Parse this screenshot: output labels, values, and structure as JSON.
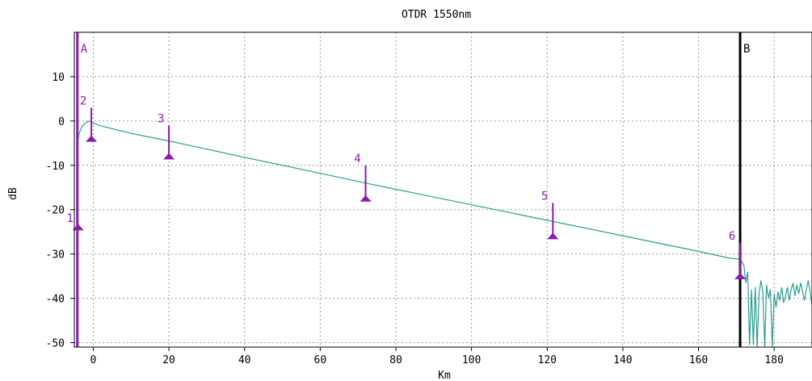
{
  "chart_data": {
    "type": "line",
    "title": "OTDR 1550nm",
    "xlabel": "Km",
    "ylabel": "dB",
    "xlim": [
      -5,
      190
    ],
    "ylim": [
      -51,
      20
    ],
    "grid": true,
    "x_ticks": [
      0,
      20,
      40,
      60,
      80,
      100,
      120,
      140,
      160,
      180
    ],
    "y_ticks": [
      10,
      0,
      -10,
      -20,
      -30,
      -40,
      -50
    ],
    "colors": {
      "trace": "#2a9d8f",
      "marker": "#8a1bb0",
      "cursor_a": "#8a1bb0",
      "cursor_b": "#000000"
    },
    "series": [
      {
        "values": [
          [
            -4.4,
            -6.5
          ],
          [
            -3.8,
            -3.0
          ],
          [
            -3.0,
            -1.2
          ],
          [
            -2.0,
            -0.4
          ],
          [
            -1.0,
            0.0
          ],
          [
            0,
            -0.5
          ],
          [
            2,
            -1.1
          ],
          [
            10,
            -2.8
          ],
          [
            20,
            -4.5
          ],
          [
            40,
            -8.2
          ],
          [
            60,
            -11.8
          ],
          [
            72,
            -14.0
          ],
          [
            80,
            -15.4
          ],
          [
            100,
            -18.9
          ],
          [
            120,
            -22.4
          ],
          [
            140,
            -25.9
          ],
          [
            160,
            -29.4
          ],
          [
            168,
            -30.9
          ],
          [
            171,
            -31.2
          ],
          [
            172,
            -32.5
          ],
          [
            172.5,
            -36.5
          ],
          [
            173,
            -34.0
          ],
          [
            173.5,
            -50.5
          ],
          [
            174,
            -38.0
          ],
          [
            174.5,
            -50.5
          ],
          [
            175,
            -37.5
          ],
          [
            175.5,
            -51.0
          ],
          [
            176,
            -39.0
          ],
          [
            176.5,
            -36.0
          ],
          [
            177,
            -38.5
          ],
          [
            177.5,
            -51.0
          ],
          [
            178,
            -37.0
          ],
          [
            178.5,
            -40.0
          ],
          [
            179,
            -38.0
          ],
          [
            179.5,
            -51.0
          ],
          [
            180,
            -39.0
          ],
          [
            180.5,
            -42.0
          ],
          [
            181,
            -38.5
          ],
          [
            181.5,
            -40.5
          ],
          [
            182,
            -37.5
          ],
          [
            182.5,
            -41.0
          ],
          [
            183,
            -39.5
          ],
          [
            183.5,
            -37.5
          ],
          [
            184,
            -40.5
          ],
          [
            184.5,
            -38.0
          ],
          [
            185,
            -36.5
          ],
          [
            185.5,
            -39.5
          ],
          [
            186,
            -37.0
          ],
          [
            186.5,
            -39.0
          ],
          [
            187,
            -36.5
          ],
          [
            187.5,
            -38.5
          ],
          [
            188,
            -40.5
          ],
          [
            188.5,
            -38.0
          ],
          [
            189,
            -36.0
          ],
          [
            189.5,
            -38.5
          ],
          [
            190,
            -41.5
          ]
        ]
      }
    ],
    "markers": [
      {
        "label": "1",
        "x": -4,
        "y_top": -23.5,
        "y_bottom": -24.5
      },
      {
        "label": "2",
        "x": -0.5,
        "y_top": 3.0,
        "y_bottom": -4.5
      },
      {
        "label": "3",
        "x": 20,
        "y_top": -1.0,
        "y_bottom": -8.5
      },
      {
        "label": "4",
        "x": 72,
        "y_top": -10.0,
        "y_bottom": -18.0
      },
      {
        "label": "5",
        "x": 121.5,
        "y_top": -18.5,
        "y_bottom": -26.5
      },
      {
        "label": "6",
        "x": 171,
        "y_top": -27.5,
        "y_bottom": -35.5
      }
    ],
    "cursors": [
      {
        "label": "A",
        "x": -4.2
      },
      {
        "label": "B",
        "x": 171
      }
    ]
  }
}
